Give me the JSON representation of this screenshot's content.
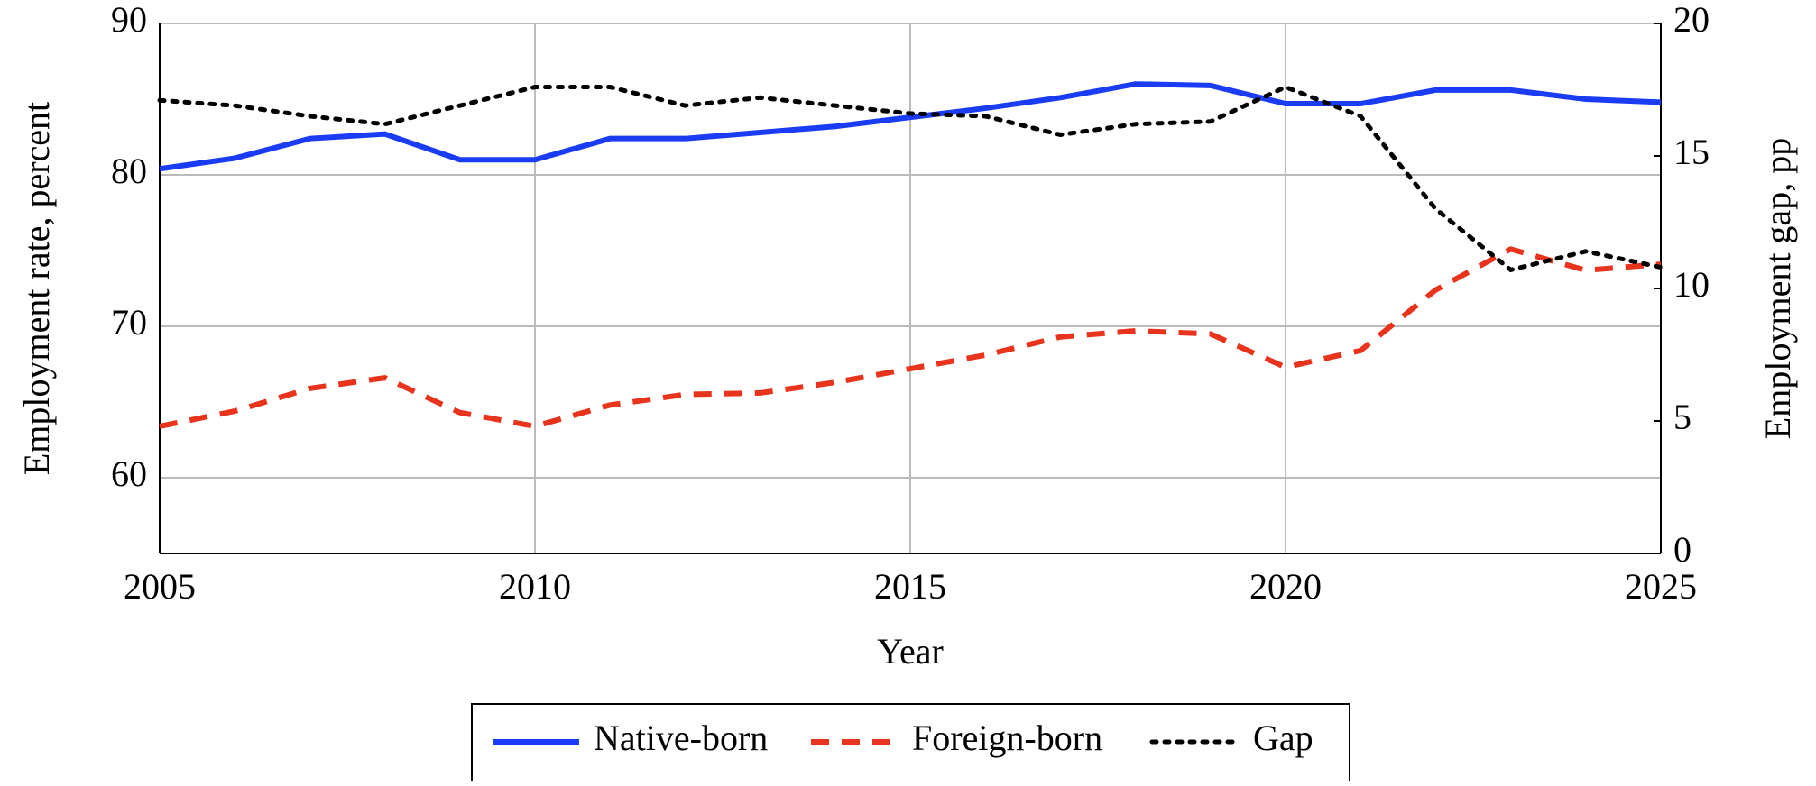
{
  "chart_data": {
    "type": "line",
    "x_label": "Year",
    "y_label": "Employment rate, percent",
    "y2_label": "Employment gap, pp",
    "x": [
      2005,
      2006,
      2007,
      2008,
      2009,
      2010,
      2011,
      2012,
      2013,
      2014,
      2015,
      2016,
      2017,
      2018,
      2019,
      2020,
      2021,
      2022,
      2023,
      2024,
      2025
    ],
    "xlim": [
      2005,
      2025
    ],
    "xticks": [
      2005,
      2010,
      2015,
      2020,
      2025
    ],
    "ylim": [
      55,
      90
    ],
    "yticks": [
      60,
      70,
      80,
      90
    ],
    "y2lim": [
      0,
      20
    ],
    "y2ticks": [
      0,
      5,
      10,
      15,
      20
    ],
    "grid": true,
    "legend": "bottom",
    "series": [
      {
        "name": "Native-born",
        "color": "#1a3cf5",
        "style": "solid",
        "values": [
          80.4,
          81.1,
          82.4,
          82.7,
          81.0,
          81.0,
          82.4,
          82.4,
          82.8,
          83.2,
          83.8,
          84.4,
          85.1,
          86.0,
          85.9,
          84.7,
          84.7,
          85.6,
          85.6,
          85.0,
          84.8
        ]
      },
      {
        "name": "Foreign-born",
        "color": "#e8341c",
        "style": "dashed",
        "values": [
          63.4,
          64.4,
          65.9,
          66.6,
          64.3,
          63.4,
          64.8,
          65.5,
          65.6,
          66.3,
          67.2,
          68.1,
          69.3,
          69.7,
          69.5,
          67.3,
          68.4,
          72.4,
          75.1,
          73.7,
          74.1
        ]
      },
      {
        "name": "Gap",
        "color": "#000000",
        "style": "dotted",
        "axis": "y2",
        "values": [
          17.1,
          16.9,
          16.5,
          16.2,
          16.9,
          17.6,
          17.6,
          16.9,
          17.2,
          16.9,
          16.6,
          16.5,
          15.8,
          16.2,
          16.3,
          17.6,
          16.5,
          13.0,
          10.7,
          11.4,
          10.8
        ]
      }
    ]
  }
}
